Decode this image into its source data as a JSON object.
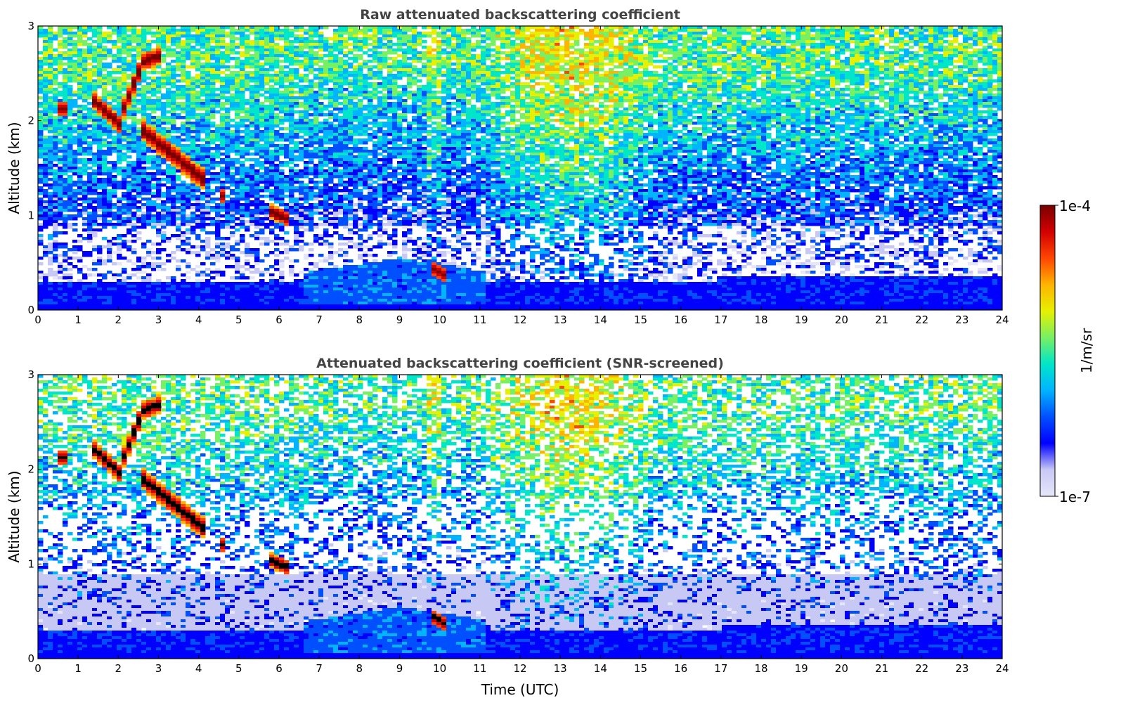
{
  "chart_data": [
    {
      "type": "heatmap",
      "title": "Raw attenuated backscattering coefficient",
      "ylabel": "Altitude (km)",
      "xlabel": "",
      "xlim": [
        0,
        24
      ],
      "ylim": [
        0,
        3
      ],
      "xticks": [
        "0",
        "1",
        "2",
        "3",
        "4",
        "5",
        "6",
        "7",
        "8",
        "9",
        "10",
        "11",
        "12",
        "13",
        "14",
        "15",
        "16",
        "17",
        "18",
        "19",
        "20",
        "21",
        "22",
        "23",
        "24"
      ],
      "yticks": [
        "0",
        "1",
        "2",
        "3"
      ],
      "screened": false
    },
    {
      "type": "heatmap",
      "title": "Attenuated backscattering coefficient (SNR-screened)",
      "ylabel": "Altitude (km)",
      "xlabel": "Time (UTC)",
      "xlim": [
        0,
        24
      ],
      "ylim": [
        0,
        3
      ],
      "xticks": [
        "0",
        "1",
        "2",
        "3",
        "4",
        "5",
        "6",
        "7",
        "8",
        "9",
        "10",
        "11",
        "12",
        "13",
        "14",
        "15",
        "16",
        "17",
        "18",
        "19",
        "20",
        "21",
        "22",
        "23",
        "24"
      ],
      "yticks": [
        "0",
        "1",
        "2",
        "3"
      ],
      "screened": true
    }
  ],
  "colorbar": {
    "label": "1/m/sr",
    "max_label": "1e-4",
    "min_label": "1e-7",
    "scale": "log",
    "colormap": [
      "#e6e6fa",
      "#c8c8f5",
      "#0000ff",
      "#0050ff",
      "#00b4ff",
      "#00e6c8",
      "#78f064",
      "#e6f000",
      "#ffb400",
      "#ff4600",
      "#d20000",
      "#780000"
    ]
  }
}
